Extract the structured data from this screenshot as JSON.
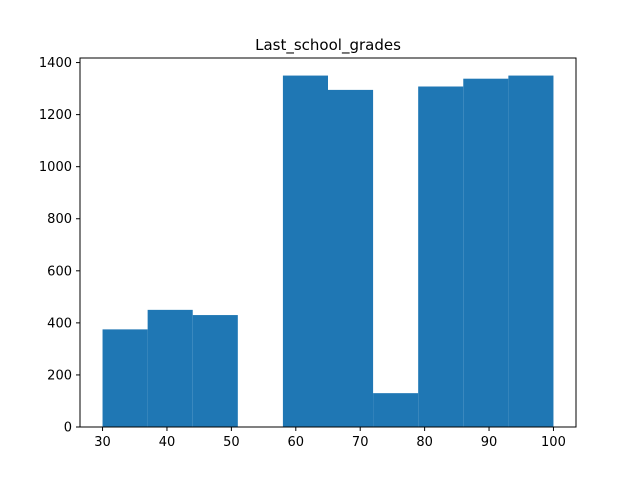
{
  "chart_data": {
    "type": "bar",
    "title": "Last_school_grades",
    "xlabel": "",
    "ylabel": "",
    "bar_color": "#1f77b4",
    "bins": [
      {
        "x0": 30,
        "x1": 37,
        "value": 375
      },
      {
        "x0": 37,
        "x1": 44,
        "value": 450
      },
      {
        "x0": 44,
        "x1": 51,
        "value": 430
      },
      {
        "x0": 51,
        "x1": 58,
        "value": 0
      },
      {
        "x0": 58,
        "x1": 65,
        "value": 1350
      },
      {
        "x0": 65,
        "x1": 72,
        "value": 1295
      },
      {
        "x0": 72,
        "x1": 79,
        "value": 130
      },
      {
        "x0": 79,
        "x1": 86,
        "value": 1308
      },
      {
        "x0": 86,
        "x1": 93,
        "value": 1338
      },
      {
        "x0": 93,
        "x1": 100,
        "value": 1350
      }
    ],
    "xlim": [
      26.5,
      103.5
    ],
    "ylim": [
      0,
      1417.5
    ],
    "xticks": [
      30,
      40,
      50,
      60,
      70,
      80,
      90,
      100
    ],
    "yticks": [
      0,
      200,
      400,
      600,
      800,
      1000,
      1200,
      1400
    ],
    "grid": false,
    "legend": "none"
  }
}
